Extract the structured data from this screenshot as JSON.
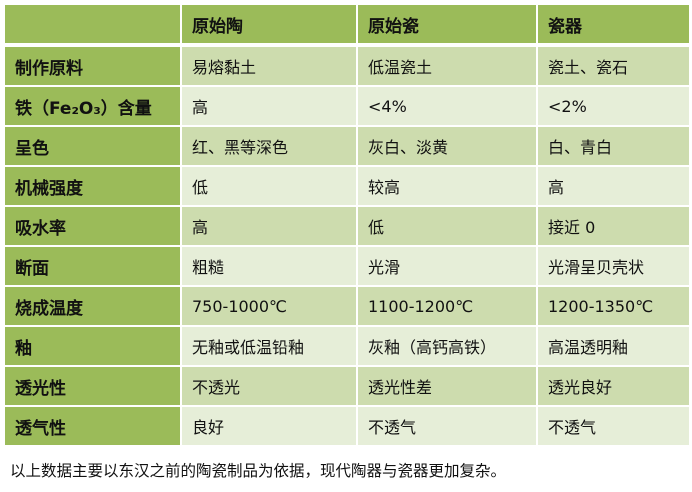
{
  "colors": {
    "header": "#9bbb59",
    "row_dark": "#cddcae",
    "row_light": "#e6eed8"
  },
  "table": {
    "headers": [
      "",
      "原始陶",
      "原始瓷",
      "瓷器"
    ],
    "rows": [
      {
        "label": "制作原料",
        "values": [
          "易熔黏土",
          "低温瓷土",
          "瓷土、瓷石"
        ]
      },
      {
        "label": "铁（Fe₂O₃）含量",
        "values": [
          "高",
          "<4%",
          "<2%"
        ]
      },
      {
        "label": "呈色",
        "values": [
          "红、黑等深色",
          "灰白、淡黄",
          "白、青白"
        ]
      },
      {
        "label": "机械强度",
        "values": [
          "低",
          "较高",
          "高"
        ]
      },
      {
        "label": "吸水率",
        "values": [
          "高",
          "低",
          "接近 0"
        ]
      },
      {
        "label": "断面",
        "values": [
          "粗糙",
          "光滑",
          "光滑呈贝壳状"
        ]
      },
      {
        "label": "烧成温度",
        "values": [
          "750-1000℃",
          "1100-1200℃",
          "1200-1350℃"
        ]
      },
      {
        "label": "釉",
        "values": [
          "无釉或低温铅釉",
          "灰釉（高钙高铁）",
          "高温透明釉"
        ]
      },
      {
        "label": "透光性",
        "values": [
          "不透光",
          "透光性差",
          "透光良好"
        ]
      },
      {
        "label": "透气性",
        "values": [
          "良好",
          "不透气",
          "不透气"
        ]
      }
    ]
  },
  "caption": "以上数据主要以东汉之前的陶瓷制品为依据，现代陶器与瓷器更加复杂。"
}
